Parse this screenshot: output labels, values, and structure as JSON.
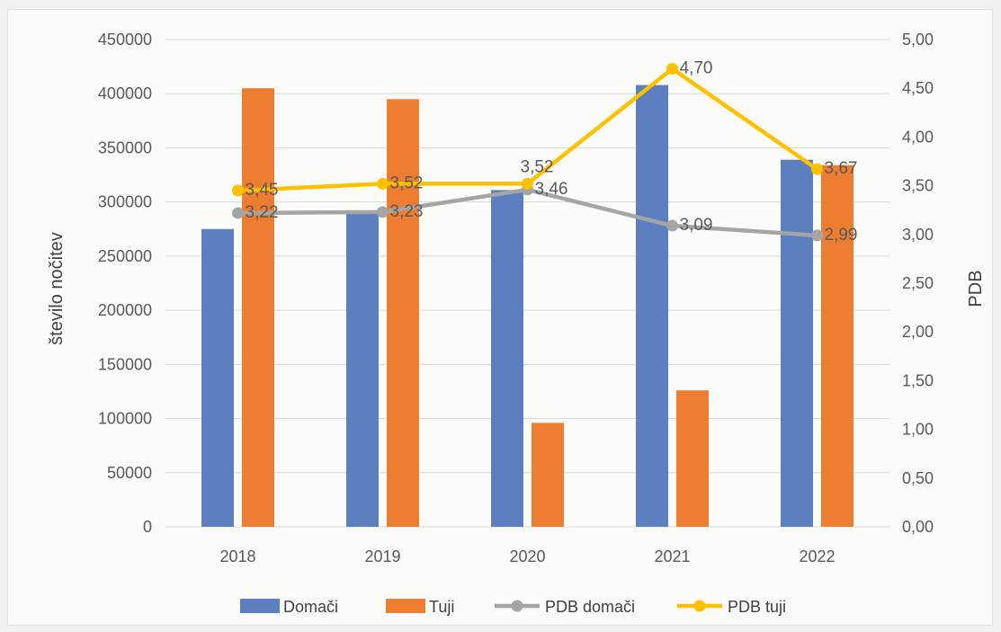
{
  "chart_data": {
    "type": "bar+line",
    "categories": [
      "2018",
      "2019",
      "2020",
      "2021",
      "2022"
    ],
    "bar_series": [
      {
        "name": "Domači",
        "color": "#5b7fbf",
        "values": [
          275000,
          291000,
          311000,
          408000,
          339000
        ]
      },
      {
        "name": "Tuji",
        "color": "#ed7d31",
        "values": [
          405000,
          395000,
          96000,
          126000,
          334000
        ]
      }
    ],
    "line_series": [
      {
        "name": "PDB domači",
        "color": "#a5a5a5",
        "values": [
          3.22,
          3.23,
          3.46,
          3.09,
          2.99
        ],
        "labels": [
          "3,22",
          "3,23",
          "3,46",
          "3,09",
          "2,99"
        ]
      },
      {
        "name": "PDB tuji",
        "color": "#ffc000",
        "values": [
          3.45,
          3.52,
          3.52,
          4.7,
          3.67
        ],
        "labels": [
          "3,45",
          "3,52",
          "3,52",
          "4,70",
          "3,67"
        ]
      }
    ],
    "y_left": {
      "label": "število nočitev",
      "range": [
        0,
        450000
      ],
      "ticks": [
        "0",
        "50000",
        "100000",
        "150000",
        "200000",
        "250000",
        "300000",
        "350000",
        "400000",
        "450000"
      ]
    },
    "y_right": {
      "label": "PDB",
      "range": [
        0,
        5
      ],
      "ticks": [
        "0,00",
        "0,50",
        "1,00",
        "1,50",
        "2,00",
        "2,50",
        "3,00",
        "3,50",
        "4,00",
        "4,50",
        "5,00"
      ]
    },
    "grid": true,
    "legend_position": "bottom"
  }
}
